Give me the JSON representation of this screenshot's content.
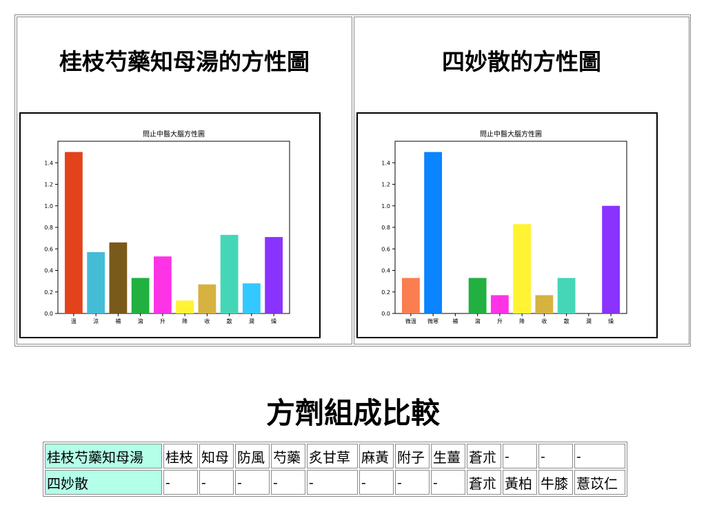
{
  "panels": [
    {
      "title": "桂枝芍藥知母湯的方性圖",
      "chart_data": {
        "type": "bar",
        "title": "問止中醫大腦方性圖",
        "categories": [
          "溫",
          "涼",
          "補",
          "瀉",
          "升",
          "降",
          "收",
          "散",
          "潤",
          "燥"
        ],
        "values": [
          1.5,
          0.57,
          0.66,
          0.33,
          0.53,
          0.12,
          0.27,
          0.73,
          0.28,
          0.71
        ],
        "colors": [
          "#e2431b",
          "#45bcd6",
          "#7a5a1a",
          "#22b040",
          "#ff33e6",
          "#fff333",
          "#d6b240",
          "#45d6b8",
          "#33c8ff",
          "#8a33ff"
        ],
        "ylim": [
          0,
          1.6
        ],
        "yticks": [
          0.0,
          0.2,
          0.4,
          0.6,
          0.8,
          1.0,
          1.2,
          1.4
        ],
        "ylabel": "",
        "xlabel": "",
        "grid": false
      }
    },
    {
      "title": "四妙散的方性圖",
      "chart_data": {
        "type": "bar",
        "title": "問止中醫大腦方性圖",
        "categories": [
          "微溫",
          "微寒",
          "補",
          "瀉",
          "升",
          "降",
          "收",
          "散",
          "潤",
          "燥"
        ],
        "values": [
          0.33,
          1.5,
          0,
          0.33,
          0.17,
          0.83,
          0.17,
          0.33,
          0,
          1.0
        ],
        "colors": [
          "#fa7e50",
          "#0a84ff",
          "#7a5a1a",
          "#22b040",
          "#ff33e6",
          "#fff333",
          "#d6b240",
          "#45d6b8",
          "#33c8ff",
          "#8a33ff"
        ],
        "ylim": [
          0,
          1.6
        ],
        "yticks": [
          0.0,
          0.2,
          0.4,
          0.6,
          0.8,
          1.0,
          1.2,
          1.4
        ],
        "ylabel": "",
        "xlabel": "",
        "grid": false
      }
    }
  ],
  "comparison": {
    "title": "方劑組成比較",
    "rows": [
      {
        "name": "桂枝芍藥知母湯",
        "cells": [
          "桂枝",
          "知母",
          "防風",
          "芍藥",
          "炙甘草",
          "麻黃",
          "附子",
          "生薑",
          "蒼朮",
          "-",
          "-",
          "-"
        ]
      },
      {
        "name": "四妙散",
        "cells": [
          "-",
          "-",
          "-",
          "-",
          "-",
          "-",
          "-",
          "-",
          "蒼朮",
          "黃柏",
          "牛膝",
          "薏苡仁"
        ]
      }
    ]
  }
}
